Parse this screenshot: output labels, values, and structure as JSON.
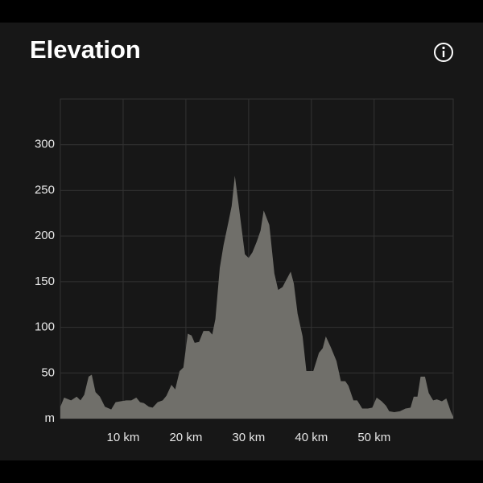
{
  "chart_data": {
    "type": "area",
    "title": "Elevation",
    "color": "#706f6a",
    "grid": true,
    "x": [
      0,
      0.6,
      1.7,
      2.6,
      3.2,
      3.8,
      4.5,
      5.0,
      5.6,
      6.3,
      7.1,
      8.1,
      8.8,
      9.6,
      10.5,
      11.3,
      12.1,
      12.7,
      13.3,
      14.1,
      14.7,
      15.5,
      16.3,
      16.9,
      17.7,
      18.3,
      19.0,
      19.6,
      20.3,
      20.9,
      21.4,
      22.1,
      22.8,
      23.7,
      24.2,
      24.7,
      25.4,
      26.0,
      26.8,
      27.3,
      27.8,
      28.5,
      29.4,
      30.0,
      30.6,
      31.3,
      31.9,
      32.4,
      33.3,
      34.1,
      34.7,
      35.4,
      36.0,
      36.7,
      37.2,
      37.8,
      38.6,
      39.2,
      40.3,
      41.2,
      41.8,
      42.3,
      43.1,
      44.0,
      44.7,
      45.4,
      45.9,
      46.7,
      47.3,
      48.1,
      49.0,
      49.7,
      50.4,
      51.2,
      51.9,
      52.4,
      53.2,
      54.1,
      55.0,
      55.8,
      56.3,
      56.9,
      57.4,
      58.1,
      58.7,
      59.4,
      60.0,
      60.8,
      61.5,
      62.2,
      62.6
    ],
    "values": [
      13,
      23,
      20,
      24,
      20,
      26,
      46,
      48,
      29,
      24,
      13,
      10,
      18,
      19,
      20,
      20,
      23,
      18,
      17,
      13,
      12,
      18,
      20,
      25,
      37,
      32,
      52,
      56,
      93,
      91,
      83,
      84,
      96,
      96,
      92,
      109,
      165,
      190,
      216,
      233,
      266,
      229,
      180,
      176,
      182,
      194,
      206,
      228,
      212,
      159,
      141,
      144,
      152,
      161,
      148,
      115,
      90,
      52,
      52,
      72,
      77,
      90,
      78,
      63,
      41,
      41,
      36,
      20,
      20,
      11,
      11,
      12,
      23,
      19,
      14,
      8,
      7,
      8,
      11,
      12,
      24,
      24,
      46,
      46,
      28,
      20,
      21,
      19,
      22,
      8,
      2
    ],
    "xlim": [
      0,
      62.6
    ],
    "ylim": [
      0,
      350
    ],
    "xticks": [
      {
        "value": 10,
        "label": "10 km"
      },
      {
        "value": 20,
        "label": "20 km"
      },
      {
        "value": 30,
        "label": "30 km"
      },
      {
        "value": 40,
        "label": "40 km"
      },
      {
        "value": 50,
        "label": "50 km"
      }
    ],
    "yticks": [
      {
        "value": 0,
        "label": "m"
      },
      50,
      100,
      150,
      200,
      250,
      300
    ]
  }
}
